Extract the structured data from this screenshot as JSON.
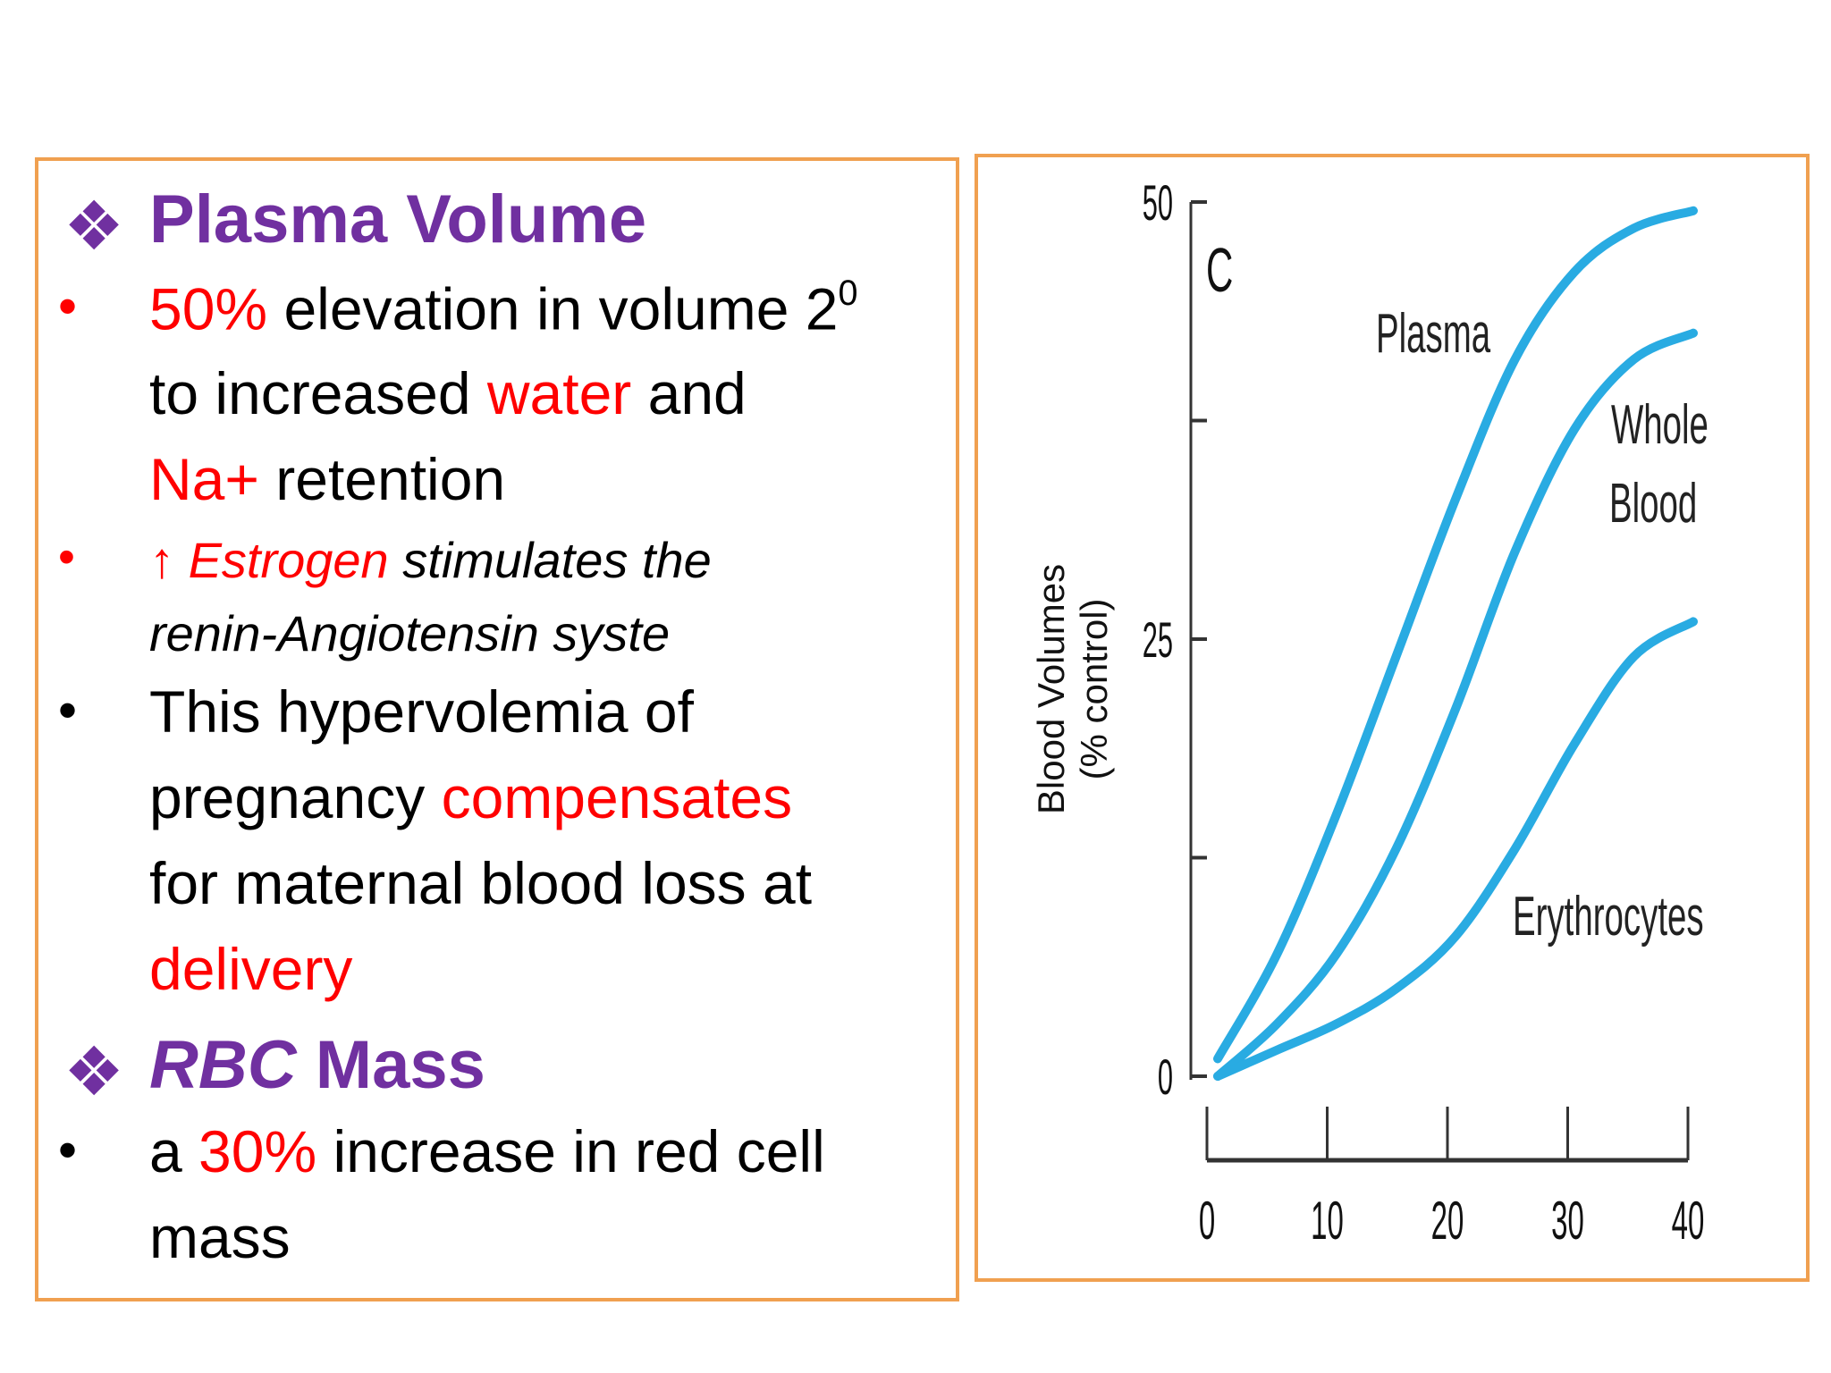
{
  "left_panel": {
    "plasma_heading": "Plasma Volume",
    "diamond_glyph": "❖",
    "bullet_glyph": "•",
    "b1": {
      "pct": "50%",
      "t1": " elevation in volume 2",
      "sup": "0",
      "t2": "to increased ",
      "water": "water",
      "t3": " and",
      "na": "Na+",
      "t4": " retention"
    },
    "b2": {
      "arrow": "↑",
      "estrogen": "Estrogen",
      "t1": " stimulates the",
      "t2": "renin-Angiotensin syste"
    },
    "b3": {
      "t1": "This hypervolemia of",
      "t2": "pregnancy ",
      "comp": "compensates",
      "t3": "for maternal blood loss at",
      "delivery": "delivery"
    },
    "rbc_heading": {
      "rbc": "RBC",
      "mass": " Mass"
    },
    "b4": {
      "t1": "a ",
      "pct": "30%",
      "t2": " increase in red cell",
      "t3": "mass"
    }
  },
  "chart_data": {
    "type": "line",
    "panel_label": "C",
    "ylabel_line1": "Blood Volumes",
    "ylabel_line2": "(% control)",
    "xlabel": "",
    "xlim": [
      0,
      40
    ],
    "ylim": [
      0,
      50
    ],
    "x_ticks": [
      "0",
      "10",
      "20",
      "30",
      "40"
    ],
    "y_ticks": [
      "0",
      "25",
      "50"
    ],
    "series_color": "#29abe2",
    "series": [
      {
        "name": "Plasma",
        "x": [
          0,
          5,
          10,
          15,
          20,
          25,
          30,
          35,
          40
        ],
        "y": [
          1,
          7,
          15,
          24,
          33,
          41,
          46,
          48.5,
          49.5
        ]
      },
      {
        "name": "Whole Blood",
        "x": [
          0,
          5,
          10,
          15,
          20,
          25,
          30,
          35,
          40
        ],
        "y": [
          0,
          3,
          7,
          13,
          21,
          30,
          37,
          41,
          42.5
        ]
      },
      {
        "name": "Erythrocytes",
        "x": [
          0,
          5,
          10,
          15,
          20,
          25,
          30,
          35,
          40
        ],
        "y": [
          0,
          1.5,
          3,
          5,
          8,
          13,
          19,
          24,
          26
        ]
      }
    ],
    "labels": {
      "plasma": "Plasma",
      "whole1": "Whole",
      "whole2": "Blood",
      "erythrocytes": "Erythrocytes"
    }
  }
}
